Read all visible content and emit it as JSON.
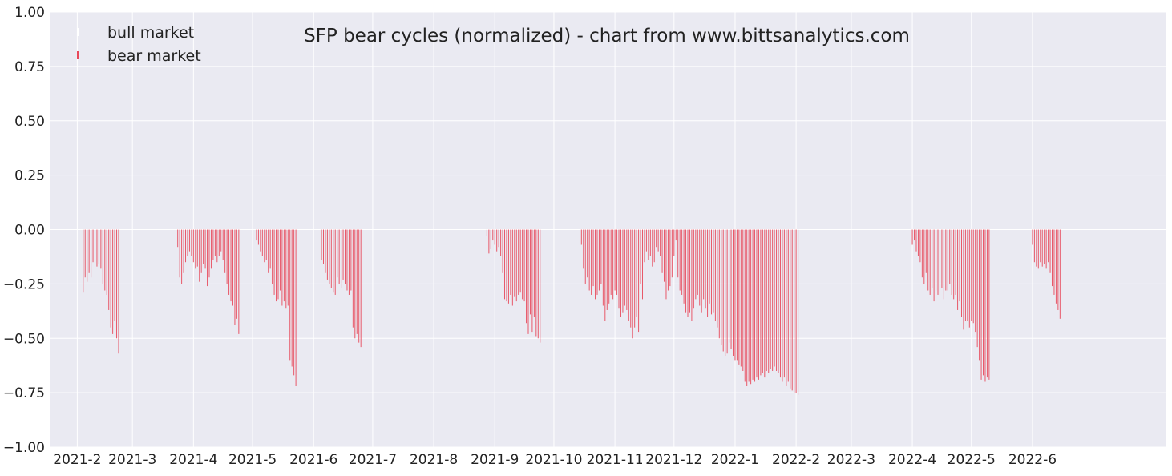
{
  "chart_data": {
    "type": "bar",
    "title": "SFP bear cycles (normalized)  - chart from www.bittsanalytics.com",
    "xlabel": "",
    "ylabel": "",
    "ylim": [
      -1.0,
      1.0
    ],
    "y_ticks": [
      "−1.00",
      "−0.75",
      "−0.50",
      "−0.25",
      "0.00",
      "0.25",
      "0.50",
      "0.75",
      "1.00"
    ],
    "y_tick_values": [
      -1.0,
      -0.75,
      -0.5,
      -0.25,
      0.0,
      0.25,
      0.5,
      0.75,
      1.0
    ],
    "x_start": "2021-01-18",
    "x_end": "2022-08-08",
    "x_ticks": [
      {
        "label": "2021-2",
        "date": "2021-02-01"
      },
      {
        "label": "2021-3",
        "date": "2021-03-01"
      },
      {
        "label": "2021-4",
        "date": "2021-04-01"
      },
      {
        "label": "2021-5",
        "date": "2021-05-01"
      },
      {
        "label": "2021-6",
        "date": "2021-06-01"
      },
      {
        "label": "2021-7",
        "date": "2021-07-01"
      },
      {
        "label": "2021-8",
        "date": "2021-08-01"
      },
      {
        "label": "2021-9",
        "date": "2021-09-01"
      },
      {
        "label": "2021-10",
        "date": "2021-10-01"
      },
      {
        "label": "2021-11",
        "date": "2021-11-01"
      },
      {
        "label": "2021-12",
        "date": "2021-12-01"
      },
      {
        "label": "2022-1",
        "date": "2022-01-01"
      },
      {
        "label": "2022-2",
        "date": "2022-02-01"
      },
      {
        "label": "2022-3",
        "date": "2022-03-01"
      },
      {
        "label": "2022-4",
        "date": "2022-04-01"
      },
      {
        "label": "2022-5",
        "date": "2022-05-01"
      },
      {
        "label": "2022-6",
        "date": "2022-06-01"
      }
    ],
    "grid": true,
    "legend_position": "top-left",
    "series": [
      {
        "name": "bull market",
        "color": "#ffffff",
        "values": []
      },
      {
        "name": "bear market",
        "color": "#e8485a",
        "cycles": [
          {
            "start": "2021-02-04",
            "values": [
              -0.29,
              -0.22,
              -0.24,
              -0.2,
              -0.22,
              -0.15,
              -0.22,
              -0.17,
              -0.16,
              -0.18,
              -0.25,
              -0.28,
              -0.3,
              -0.37,
              -0.45,
              -0.48,
              -0.42,
              -0.5,
              -0.57
            ]
          },
          {
            "start": "2021-03-24",
            "values": [
              -0.08,
              -0.22,
              -0.25,
              -0.2,
              -0.15,
              -0.12,
              -0.1,
              -0.12,
              -0.15,
              -0.18,
              -0.17,
              -0.24,
              -0.2,
              -0.16,
              -0.18,
              -0.26,
              -0.22,
              -0.18,
              -0.14,
              -0.12,
              -0.15,
              -0.12,
              -0.1,
              -0.14,
              -0.2,
              -0.25,
              -0.3,
              -0.33,
              -0.35,
              -0.44,
              -0.41,
              -0.48
            ]
          },
          {
            "start": "2021-05-03",
            "values": [
              -0.05,
              -0.07,
              -0.1,
              -0.12,
              -0.15,
              -0.14,
              -0.2,
              -0.18,
              -0.25,
              -0.3,
              -0.33,
              -0.32,
              -0.28,
              -0.35,
              -0.33,
              -0.36,
              -0.35,
              -0.6,
              -0.63,
              -0.67,
              -0.72
            ]
          },
          {
            "start": "2021-06-05",
            "values": [
              -0.14,
              -0.16,
              -0.2,
              -0.23,
              -0.25,
              -0.27,
              -0.29,
              -0.3,
              -0.22,
              -0.25,
              -0.27,
              -0.23,
              -0.25,
              -0.28,
              -0.3,
              -0.28,
              -0.45,
              -0.5,
              -0.48,
              -0.52,
              -0.54
            ]
          },
          {
            "start": "2021-08-28",
            "values": [
              -0.03,
              -0.11,
              -0.09,
              -0.05,
              -0.07,
              -0.1,
              -0.08,
              -0.12,
              -0.2,
              -0.32,
              -0.33,
              -0.34,
              -0.3,
              -0.35,
              -0.31,
              -0.33,
              -0.3,
              -0.29,
              -0.32,
              -0.33,
              -0.43,
              -0.48,
              -0.39,
              -0.47,
              -0.4,
              -0.49,
              -0.5,
              -0.52
            ]
          },
          {
            "start": "2021-10-15",
            "values": [
              -0.07,
              -0.18,
              -0.25,
              -0.22,
              -0.28,
              -0.3,
              -0.26,
              -0.32,
              -0.3,
              -0.28,
              -0.25,
              -0.35,
              -0.42,
              -0.37,
              -0.34,
              -0.3,
              -0.32,
              -0.28,
              -0.3,
              -0.36,
              -0.4,
              -0.38,
              -0.35,
              -0.37,
              -0.42,
              -0.45,
              -0.5,
              -0.45,
              -0.4,
              -0.47,
              -0.25,
              -0.32,
              -0.15,
              -0.1,
              -0.14,
              -0.12,
              -0.17,
              -0.15,
              -0.08,
              -0.1,
              -0.12,
              -0.2,
              -0.24,
              -0.32,
              -0.28,
              -0.26,
              -0.22,
              -0.12,
              -0.05,
              -0.22,
              -0.28,
              -0.3,
              -0.34,
              -0.38,
              -0.4,
              -0.38,
              -0.42,
              -0.36,
              -0.32,
              -0.3,
              -0.35,
              -0.38,
              -0.32,
              -0.36,
              -0.4,
              -0.34,
              -0.39,
              -0.38,
              -0.42,
              -0.45,
              -0.5,
              -0.53,
              -0.56,
              -0.58,
              -0.57,
              -0.52,
              -0.55,
              -0.58,
              -0.6,
              -0.6,
              -0.62,
              -0.63,
              -0.65,
              -0.7,
              -0.72,
              -0.7,
              -0.71,
              -0.69,
              -0.7,
              -0.68,
              -0.69,
              -0.67,
              -0.66,
              -0.68,
              -0.65,
              -0.66,
              -0.64,
              -0.65,
              -0.63,
              -0.65,
              -0.66,
              -0.68,
              -0.7,
              -0.68,
              -0.72,
              -0.7,
              -0.73,
              -0.74,
              -0.75,
              -0.75,
              -0.76
            ]
          },
          {
            "start": "2022-04-01",
            "values": [
              -0.07,
              -0.05,
              -0.1,
              -0.12,
              -0.15,
              -0.22,
              -0.25,
              -0.2,
              -0.28,
              -0.3,
              -0.27,
              -0.33,
              -0.28,
              -0.3,
              -0.3,
              -0.27,
              -0.32,
              -0.28,
              -0.28,
              -0.25,
              -0.3,
              -0.32,
              -0.3,
              -0.37,
              -0.33,
              -0.4,
              -0.46,
              -0.42,
              -0.42,
              -0.45,
              -0.42,
              -0.43,
              -0.47,
              -0.54,
              -0.6,
              -0.69,
              -0.67,
              -0.7,
              -0.68,
              -0.69
            ]
          },
          {
            "start": "2022-06-01",
            "values": [
              -0.07,
              -0.15,
              -0.17,
              -0.18,
              -0.15,
              -0.17,
              -0.16,
              -0.18,
              -0.15,
              -0.2,
              -0.26,
              -0.3,
              -0.34,
              -0.37,
              -0.41
            ]
          }
        ]
      }
    ]
  }
}
